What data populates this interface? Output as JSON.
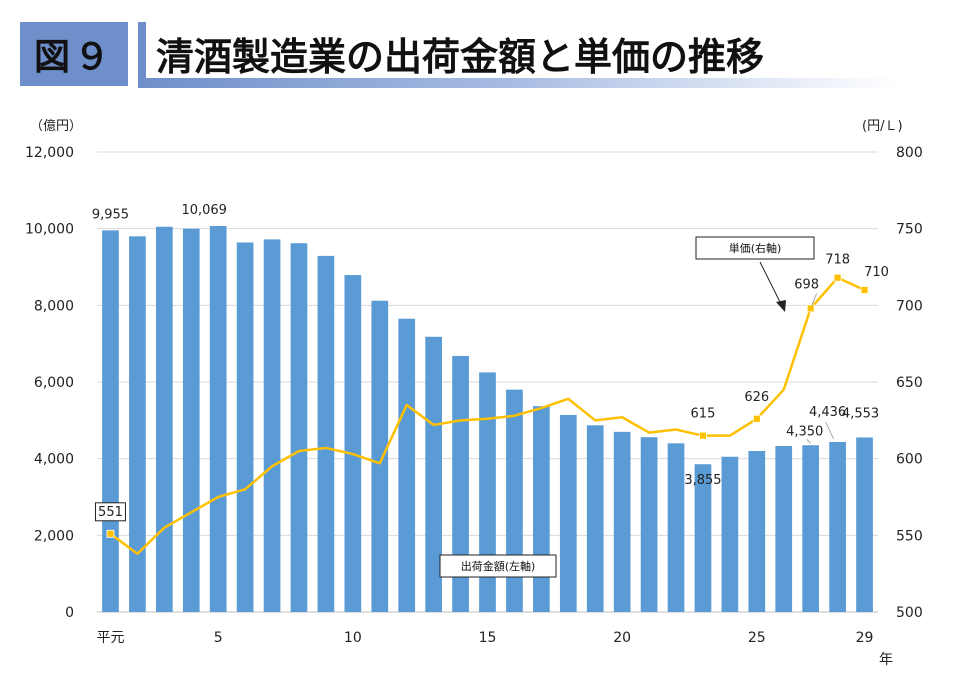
{
  "header": {
    "figure_label": "図９",
    "title": "清酒製造業の出荷金額と単価の推移"
  },
  "chart_data": {
    "type": "bar",
    "left_unit": "（億円）",
    "right_unit": "(円/Ｌ)",
    "x_suffix": "年",
    "x": [
      1,
      2,
      3,
      4,
      5,
      6,
      7,
      8,
      9,
      10,
      11,
      12,
      13,
      14,
      15,
      16,
      17,
      18,
      19,
      20,
      21,
      22,
      23,
      24,
      25,
      26,
      27,
      28,
      29
    ],
    "x_tick_labels": [
      {
        "x": 1,
        "label": "平元"
      },
      {
        "x": 5,
        "label": "5"
      },
      {
        "x": 10,
        "label": "10"
      },
      {
        "x": 15,
        "label": "15"
      },
      {
        "x": 20,
        "label": "20"
      },
      {
        "x": 25,
        "label": "25"
      },
      {
        "x": 29,
        "label": "29"
      }
    ],
    "left_axis": {
      "min": 0,
      "max": 12000,
      "ticks": [
        "0",
        "2,000",
        "4,000",
        "6,000",
        "8,000",
        "10,000",
        "12,000"
      ]
    },
    "right_axis": {
      "min": 500,
      "max": 800,
      "ticks": [
        "500",
        "550",
        "600",
        "650",
        "700",
        "750",
        "800"
      ]
    },
    "grid": true,
    "series": [
      {
        "name": "出荷金額(左軸)",
        "type": "bar",
        "axis": "left",
        "color": "#5b9bd5",
        "values": [
          9955,
          9800,
          10050,
          10000,
          10069,
          9640,
          9720,
          9620,
          9290,
          8790,
          8120,
          7650,
          7180,
          6680,
          6250,
          5800,
          5370,
          5140,
          4870,
          4700,
          4560,
          4400,
          3855,
          4050,
          4200,
          4330,
          4350,
          4436,
          4553
        ]
      },
      {
        "name": "単価(右軸)",
        "type": "line",
        "axis": "right",
        "color": "#ffc000",
        "values": [
          551,
          538,
          555,
          565,
          575,
          580,
          595,
          605,
          607,
          603,
          597,
          635,
          622,
          625,
          626,
          628,
          633,
          639,
          625,
          627,
          617,
          619,
          615,
          615,
          626,
          645,
          698,
          718,
          710
        ]
      }
    ],
    "bar_labels": [
      {
        "x": 1,
        "text": "9,955"
      },
      {
        "x": 5,
        "text": "10,069"
      },
      {
        "x": 23,
        "text": "3,855"
      },
      {
        "x": 27,
        "text": "4,350"
      },
      {
        "x": 28,
        "text": "4,436"
      },
      {
        "x": 29,
        "text": "4,553"
      }
    ],
    "line_labels": [
      {
        "x": 1,
        "text": "551",
        "boxed": true
      },
      {
        "x": 23,
        "text": "615",
        "boxed": false
      },
      {
        "x": 25,
        "text": "626",
        "boxed": false
      },
      {
        "x": 27,
        "text": "698",
        "boxed": false
      },
      {
        "x": 28,
        "text": "718",
        "boxed": false
      },
      {
        "x": 29,
        "text": "710",
        "boxed": false
      }
    ],
    "callouts": {
      "line": "単価(右軸)",
      "bars": "出荷金額(左軸)"
    }
  }
}
